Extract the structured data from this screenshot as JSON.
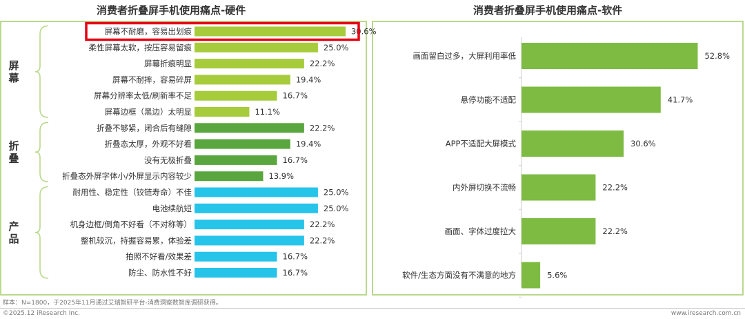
{
  "chart_data": [
    {
      "type": "bar",
      "orientation": "horizontal",
      "title": "消费者折叠屏手机使用痛点-硬件",
      "groups": [
        {
          "label": "屏幕",
          "color": "#a6cc3b",
          "start": 0,
          "end": 5
        },
        {
          "label": "折叠",
          "color": "#5aa63e",
          "start": 6,
          "end": 9
        },
        {
          "label": "产品",
          "color": "#27c4ea",
          "start": 10,
          "end": 15
        }
      ],
      "categories": [
        "屏幕不耐磨，容易出划痕",
        "柔性屏幕太软，按压容易留痕",
        "屏幕折痕明显",
        "屏幕不耐摔，容易碎屏",
        "屏幕分辨率太低/刷新率不足",
        "屏幕边框（黑边）太明显",
        "折叠不够紧，闭合后有缝隙",
        "折叠态太厚，外观不好看",
        "没有无极折叠",
        "折叠态外屏字体小/外屏显示内容较少",
        "耐用性、稳定性（铰链寿命）不佳",
        "电池续航短",
        "机身边框/倒角不好看（不对称等）",
        "整机较沉，持握容易累，体验差",
        "拍照不好看/效果差",
        "防尘、防水性不好"
      ],
      "values": [
        30.6,
        25.0,
        22.2,
        19.4,
        16.7,
        11.1,
        22.2,
        19.4,
        16.7,
        13.9,
        25.0,
        25.0,
        22.2,
        22.2,
        16.7,
        16.7
      ],
      "value_labels": [
        "30.6%",
        "25.0%",
        "22.2%",
        "19.4%",
        "16.7%",
        "11.1%",
        "22.2%",
        "19.4%",
        "16.7%",
        "13.9%",
        "25.0%",
        "25.0%",
        "22.2%",
        "22.2%",
        "16.7%",
        "16.7%"
      ],
      "highlight_index": 0,
      "highlight_color": "#e60012",
      "xlim": [
        0,
        35
      ]
    },
    {
      "type": "bar",
      "orientation": "horizontal",
      "title": "消费者折叠屏手机使用痛点-软件",
      "color": "#7dbb42",
      "categories": [
        "画面留白过多，大屏利用率低",
        "悬停功能不适配",
        "APP不适配大屏模式",
        "内外屏切换不流畅",
        "画面、字体过度拉大",
        "软件/生态方面没有不满意的地方"
      ],
      "values": [
        52.8,
        41.7,
        30.6,
        22.2,
        22.2,
        5.6
      ],
      "value_labels": [
        "52.8%",
        "41.7%",
        "30.6%",
        "22.2%",
        "22.2%",
        "5.6%"
      ],
      "xlim": [
        0,
        62
      ]
    }
  ],
  "footer": {
    "sample_note": "样本：N=1800，于2025年11月通过艾瑞智研平台-消费洞察数智库调研获得。",
    "copyright": "©2025.12 iResearch Inc.",
    "website": "www.iresearch.com.cn"
  }
}
